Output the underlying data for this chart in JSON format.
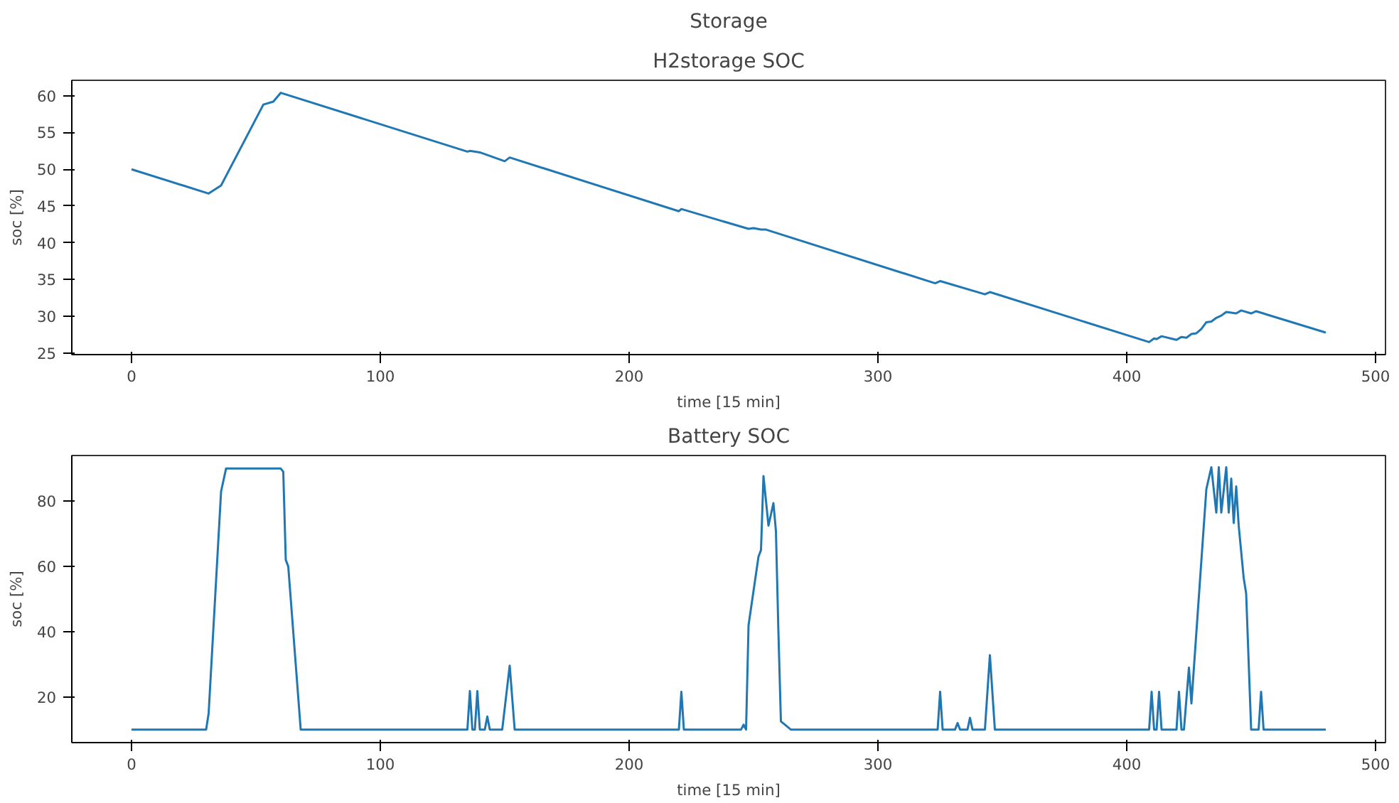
{
  "chart_data": [
    {
      "type": "line",
      "title": "Storage",
      "subtitle": "H2storage SOC",
      "xlabel": "time [15 min]",
      "ylabel": "soc [%]",
      "xlim": [
        -24,
        504
      ],
      "ylim": [
        24.8,
        62.1
      ],
      "xticks": [
        0,
        100,
        200,
        300,
        400,
        500
      ],
      "yticks": [
        25,
        30,
        35,
        40,
        45,
        50,
        55,
        60
      ],
      "grid": false,
      "marker": "none",
      "line_style": "solid",
      "series": [
        {
          "color": "#1f77b4",
          "x": [
            0,
            31,
            36,
            53,
            57,
            60,
            135,
            136,
            140,
            150,
            152,
            220,
            221,
            248,
            250,
            253,
            255,
            323,
            325,
            343,
            345,
            409,
            411,
            412,
            414,
            420,
            422,
            424,
            426,
            428,
            430,
            432,
            434,
            436,
            438,
            440,
            444,
            446,
            450,
            452,
            480
          ],
          "values": [
            50,
            46.7,
            47.8,
            58.8,
            59.2,
            60.4,
            52.4,
            52.5,
            52.3,
            51.1,
            51.6,
            44.3,
            44.6,
            41.9,
            42.0,
            41.8,
            41.8,
            34.5,
            34.8,
            33.0,
            33.3,
            26.5,
            27.0,
            26.9,
            27.3,
            26.8,
            27.2,
            27.1,
            27.6,
            27.7,
            28.3,
            29.2,
            29.3,
            29.8,
            30.1,
            30.6,
            30.4,
            30.8,
            30.4,
            30.7,
            27.8
          ]
        }
      ]
    },
    {
      "type": "line",
      "title": "Battery SOC",
      "xlabel": "time [15 min]",
      "ylabel": "soc [%]",
      "xlim": [
        -24,
        504
      ],
      "ylim": [
        6,
        94
      ],
      "xticks": [
        0,
        100,
        200,
        300,
        400,
        500
      ],
      "yticks": [
        20,
        40,
        60,
        80
      ],
      "grid": false,
      "marker": "none",
      "line_style": "solid",
      "series": [
        {
          "color": "#1f77b4",
          "x": [
            0,
            30,
            31,
            36,
            38,
            60,
            61,
            62,
            63,
            67,
            68,
            135,
            136,
            137,
            138,
            139,
            140,
            142,
            143,
            144,
            149,
            152,
            154,
            220,
            221,
            222,
            245,
            246,
            247,
            248,
            252,
            253,
            254,
            256,
            258,
            259,
            260,
            261,
            265,
            266,
            324,
            325,
            326,
            331,
            332,
            333,
            336,
            337,
            338,
            343,
            345,
            347,
            409,
            410,
            411,
            412,
            413,
            414,
            420,
            421,
            422,
            423,
            425,
            426,
            432,
            434,
            436,
            437,
            438,
            440,
            441,
            442,
            443,
            444,
            445,
            447,
            448,
            450,
            453,
            454,
            455,
            480
          ],
          "values": [
            10,
            10,
            15,
            83,
            90,
            90,
            89,
            62,
            60,
            20,
            10,
            10,
            21.8,
            10,
            10,
            21.8,
            10,
            10,
            14,
            10,
            10,
            29.6,
            10,
            10,
            21.6,
            10,
            10,
            11.5,
            10,
            42,
            63,
            65,
            87.7,
            72.5,
            79.4,
            70.9,
            40,
            12.5,
            10,
            10,
            10,
            21.6,
            10,
            10,
            12,
            10,
            10,
            13.6,
            10,
            10,
            32.8,
            10,
            10,
            21.6,
            10,
            10,
            21.6,
            10,
            10,
            21.6,
            10,
            10,
            29,
            18,
            83.7,
            90.4,
            76.5,
            90.4,
            76.5,
            90.4,
            76.5,
            86.9,
            73.3,
            84.5,
            72.5,
            56.5,
            51.7,
            10,
            10,
            21.6,
            10,
            10
          ]
        }
      ]
    }
  ]
}
